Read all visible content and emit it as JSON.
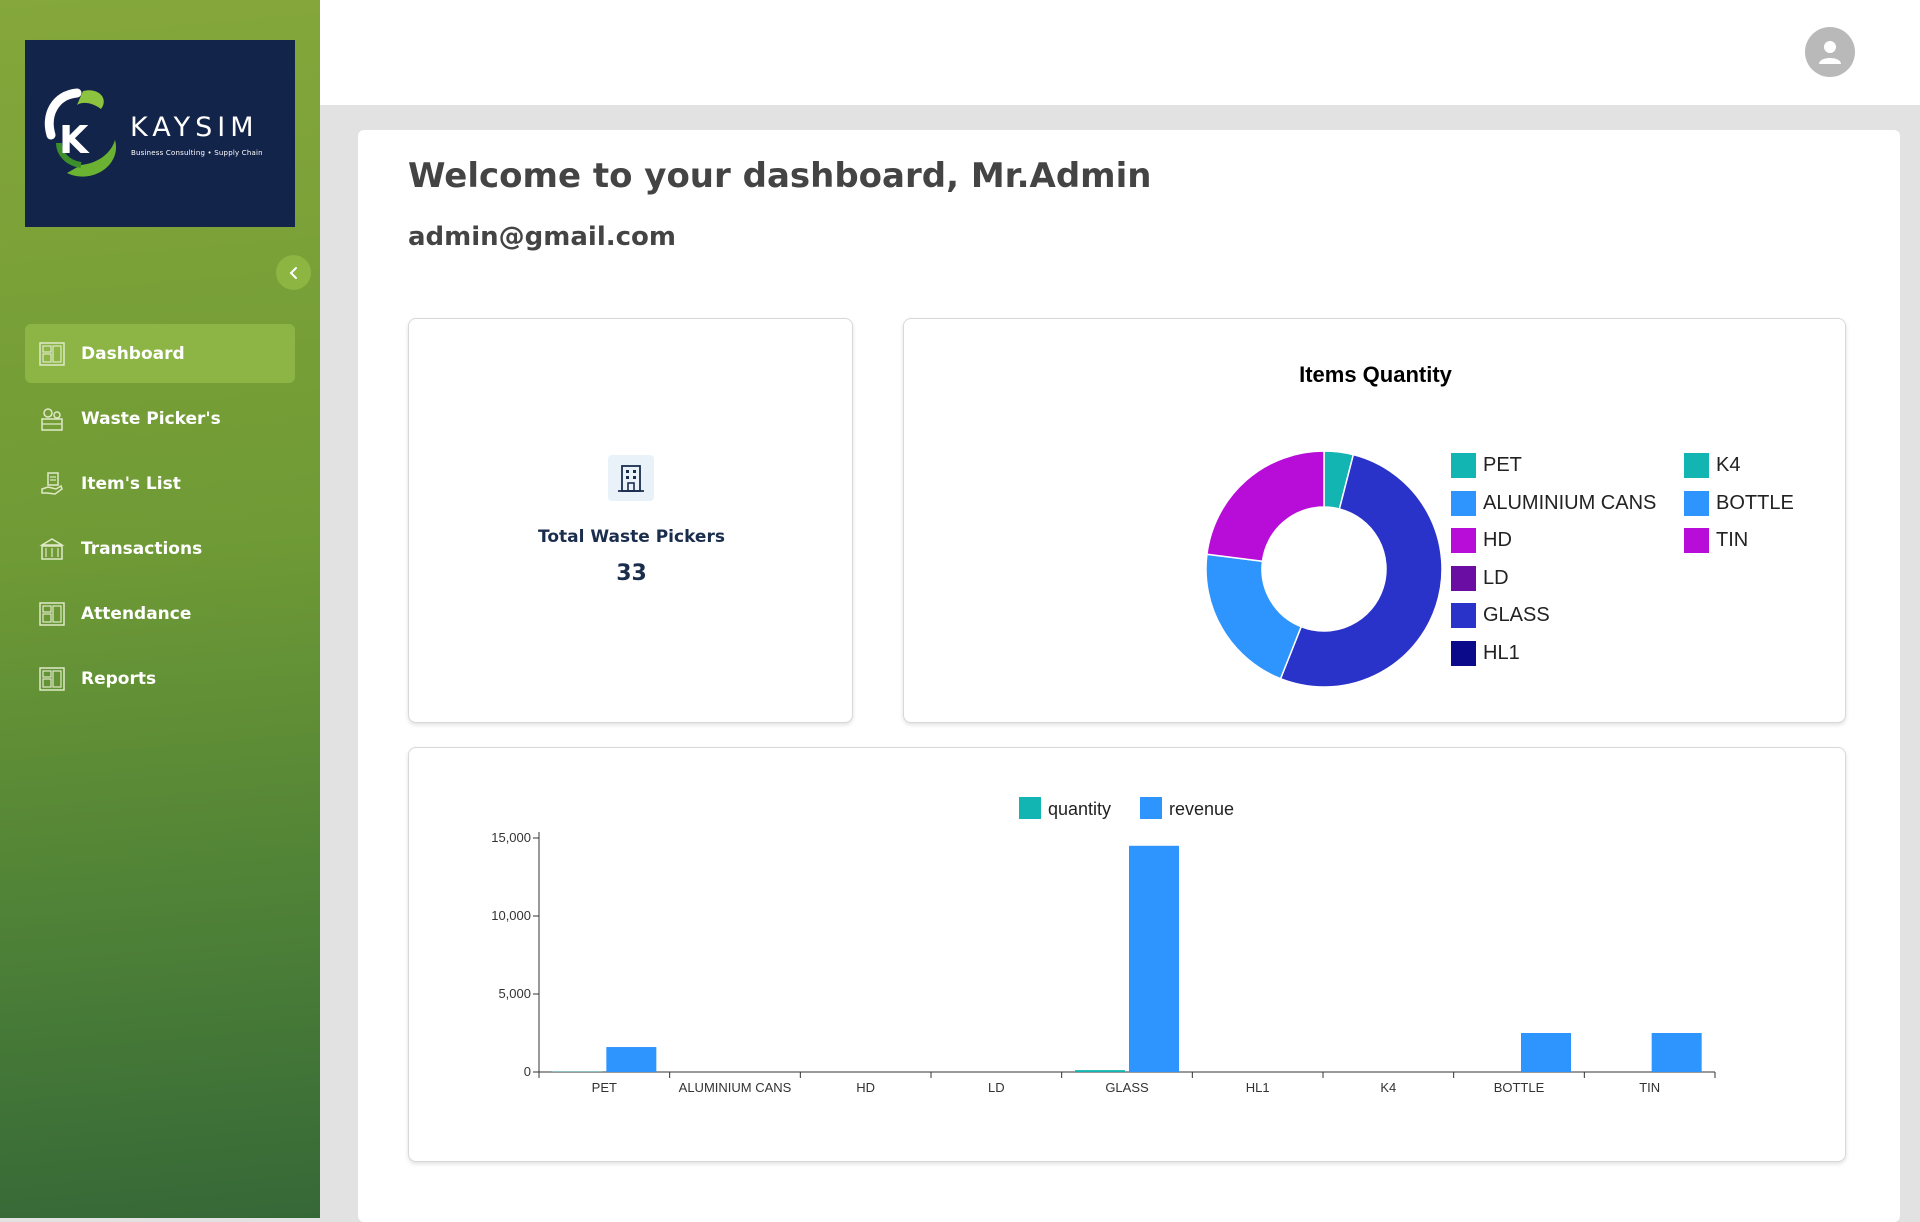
{
  "brand": {
    "name": "KAYSIM",
    "tagline": "Business Consulting  •  Supply Chain"
  },
  "sidebar": {
    "items": [
      {
        "label": "Dashboard",
        "icon": "dashboard-icon",
        "active": true
      },
      {
        "label": "Waste Picker's",
        "icon": "people-icon",
        "active": false
      },
      {
        "label": "Item's List",
        "icon": "hand-list-icon",
        "active": false
      },
      {
        "label": "Transactions",
        "icon": "transactions-icon",
        "active": false
      },
      {
        "label": "Attendance",
        "icon": "attendance-icon",
        "active": false
      },
      {
        "label": "Reports",
        "icon": "reports-icon",
        "active": false
      }
    ]
  },
  "header": {
    "welcome": "Welcome to your dashboard, Mr.Admin",
    "email": "admin@gmail.com"
  },
  "stats": {
    "pickers_label": "Total Waste Pickers",
    "pickers_value": "33"
  },
  "colors": {
    "pet": "#12b5b1",
    "aluminium": "#2e95ff",
    "hd": "#b80cd8",
    "ld": "#6a0ea3",
    "glass": "#2932c9",
    "hl1": "#0a0a8a",
    "k4": "#12b5b1",
    "bottle": "#2e95ff",
    "tin": "#b80cd8"
  },
  "chart_data": [
    {
      "type": "pie",
      "title": "Items Quantity",
      "donut": true,
      "legend_placement": "right",
      "categories": [
        "PET",
        "ALUMINIUM CANS",
        "HD",
        "LD",
        "GLASS",
        "HL1",
        "K4",
        "BOTTLE",
        "TIN"
      ],
      "values": [
        4,
        0,
        0,
        0,
        52,
        0,
        0,
        21,
        23
      ],
      "colors": [
        "#12b5b1",
        "#2e95ff",
        "#b80cd8",
        "#6a0ea3",
        "#2932c9",
        "#0a0a8a",
        "#12b5b1",
        "#2e95ff",
        "#b80cd8"
      ]
    },
    {
      "type": "bar",
      "categories": [
        "PET",
        "ALUMINIUM CANS",
        "HD",
        "LD",
        "GLASS",
        "HL1",
        "K4",
        "BOTTLE",
        "TIN"
      ],
      "series": [
        {
          "name": "quantity",
          "color": "#12b5b1",
          "values": [
            20,
            0,
            0,
            0,
            120,
            0,
            0,
            0,
            0
          ]
        },
        {
          "name": "revenue",
          "color": "#2e95ff",
          "values": [
            1600,
            0,
            0,
            0,
            14500,
            0,
            0,
            2500,
            2500
          ]
        }
      ],
      "ylim": [
        0,
        15000
      ],
      "yticks": [
        "0",
        "5,000",
        "10,000",
        "15,000"
      ],
      "ytick_values": [
        0,
        5000,
        10000,
        15000
      ],
      "legend_placement": "top",
      "grid": false
    }
  ]
}
